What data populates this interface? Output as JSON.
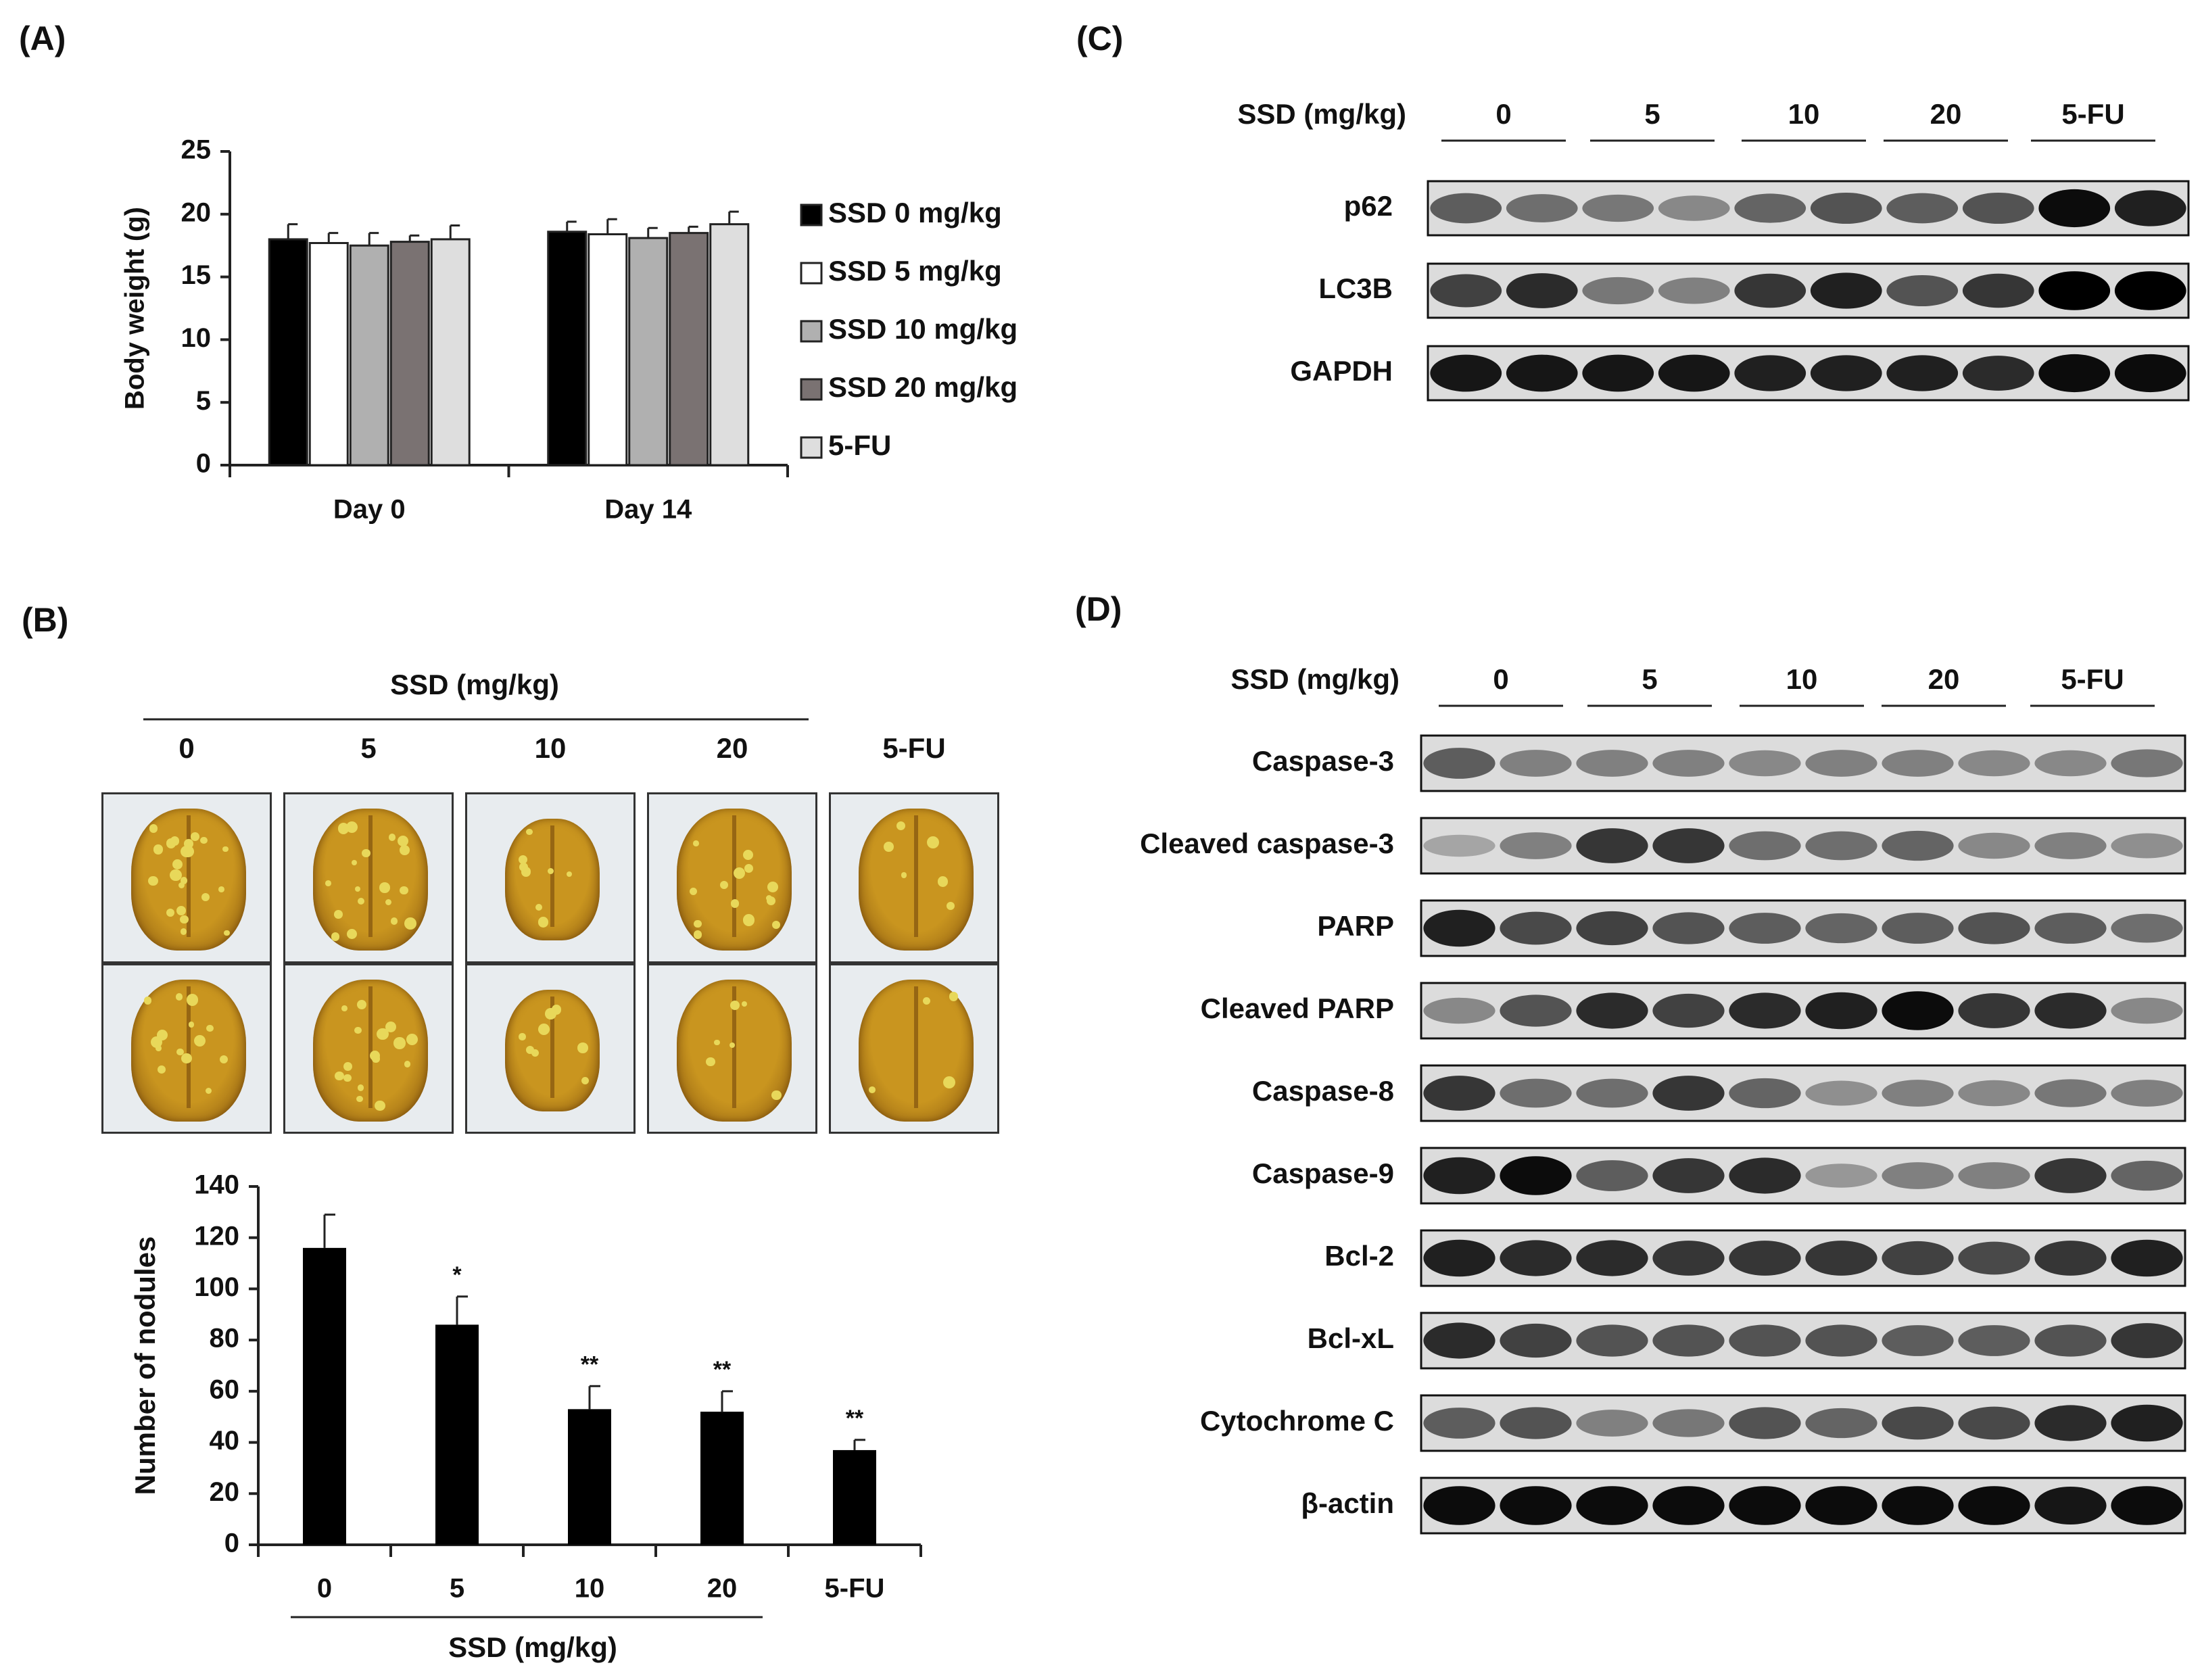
{
  "panels": {
    "a": "(A)",
    "b": "(B)",
    "c": "(C)",
    "d": "(D)"
  },
  "colors": {
    "ssd0": "#000000",
    "ssd5": "#ffffff",
    "ssd10": "#b0b0b0",
    "ssd20": "#7a7272",
    "fu": "#dedede",
    "lung_tissue": "#c9951f",
    "lung_dark": "#8a5a10",
    "nodule": "#e8d85a",
    "photo_bg": "#e8ecef"
  },
  "chart_data": [
    {
      "id": "A",
      "type": "bar",
      "title": "",
      "xlabel": "",
      "ylabel": "Body weight (g)",
      "categories": [
        "Day 0",
        "Day 14"
      ],
      "ylim": [
        0,
        25
      ],
      "yticks": [
        "0",
        "5",
        "10",
        "15",
        "20",
        "25"
      ],
      "legend_position": "right",
      "series": [
        {
          "name": "SSD 0 mg/kg",
          "values": [
            18.0,
            18.6
          ],
          "errors": [
            1.2,
            0.8
          ]
        },
        {
          "name": "SSD 5 mg/kg",
          "values": [
            17.7,
            18.4
          ],
          "errors": [
            0.8,
            1.2
          ]
        },
        {
          "name": "SSD 10 mg/kg",
          "values": [
            17.5,
            18.1
          ],
          "errors": [
            1.0,
            0.8
          ]
        },
        {
          "name": "SSD 20 mg/kg",
          "values": [
            17.8,
            18.5
          ],
          "errors": [
            0.5,
            0.5
          ]
        },
        {
          "name": "5-FU",
          "values": [
            18.0,
            19.2
          ],
          "errors": [
            1.1,
            1.0
          ]
        }
      ]
    },
    {
      "id": "B",
      "type": "bar",
      "title": "",
      "xlabel": "SSD (mg/kg)",
      "ylabel": "Number of nodules",
      "categories": [
        "0",
        "5",
        "10",
        "20",
        "5-FU"
      ],
      "values": [
        116,
        86,
        53,
        52,
        37
      ],
      "errors": [
        13,
        11,
        9,
        8,
        4
      ],
      "significance": [
        "",
        "*",
        "**",
        "**",
        "**"
      ],
      "ylim": [
        0,
        140
      ],
      "yticks": [
        "0",
        "20",
        "40",
        "60",
        "80",
        "100",
        "120",
        "140"
      ]
    }
  ],
  "photos": {
    "header": "SSD (mg/kg)",
    "columns": [
      "0",
      "5",
      "10",
      "20",
      "5-FU"
    ],
    "nodule_counts": [
      [
        22,
        14
      ],
      [
        18,
        16
      ],
      [
        8,
        8
      ],
      [
        14,
        6
      ],
      [
        6,
        4
      ]
    ]
  },
  "blot_c": {
    "header": "SSD (mg/kg)",
    "groups": [
      "0",
      "5",
      "10",
      "20",
      "5-FU"
    ],
    "rows": [
      {
        "label": "p62",
        "lanes": [
          0.55,
          0.45,
          0.4,
          0.3,
          0.5,
          0.6,
          0.55,
          0.6,
          0.95,
          0.85
        ]
      },
      {
        "label": "LC3B",
        "lanes": [
          0.7,
          0.8,
          0.4,
          0.35,
          0.75,
          0.85,
          0.6,
          0.75,
          1.0,
          1.0
        ]
      },
      {
        "label": "GAPDH",
        "lanes": [
          0.9,
          0.9,
          0.9,
          0.9,
          0.85,
          0.85,
          0.85,
          0.8,
          0.95,
          0.95
        ]
      }
    ]
  },
  "blot_d": {
    "header": "SSD (mg/kg)",
    "groups": [
      "0",
      "5",
      "10",
      "20",
      "5-FU"
    ],
    "rows": [
      {
        "label": "Caspase-3",
        "lanes": [
          0.55,
          0.35,
          0.35,
          0.35,
          0.3,
          0.35,
          0.35,
          0.3,
          0.3,
          0.4
        ]
      },
      {
        "label": "Cleaved caspase-3",
        "lanes": [
          0.1,
          0.35,
          0.75,
          0.75,
          0.45,
          0.45,
          0.5,
          0.3,
          0.35,
          0.25
        ]
      },
      {
        "label": "PARP",
        "lanes": [
          0.85,
          0.65,
          0.7,
          0.6,
          0.55,
          0.5,
          0.55,
          0.6,
          0.55,
          0.45
        ]
      },
      {
        "label": "Cleaved PARP",
        "lanes": [
          0.3,
          0.6,
          0.8,
          0.7,
          0.8,
          0.85,
          0.95,
          0.75,
          0.8,
          0.3
        ]
      },
      {
        "label": "Caspase-8",
        "lanes": [
          0.75,
          0.45,
          0.45,
          0.75,
          0.5,
          0.25,
          0.35,
          0.3,
          0.4,
          0.35
        ]
      },
      {
        "label": "Caspase-9",
        "lanes": [
          0.85,
          0.95,
          0.55,
          0.75,
          0.8,
          0.2,
          0.35,
          0.35,
          0.75,
          0.5
        ]
      },
      {
        "label": "Bcl-2",
        "lanes": [
          0.85,
          0.8,
          0.8,
          0.75,
          0.75,
          0.75,
          0.7,
          0.65,
          0.75,
          0.85
        ]
      },
      {
        "label": "Bcl-xL",
        "lanes": [
          0.8,
          0.7,
          0.6,
          0.6,
          0.6,
          0.6,
          0.55,
          0.55,
          0.6,
          0.75
        ]
      },
      {
        "label": "Cytochrome C",
        "lanes": [
          0.55,
          0.6,
          0.35,
          0.4,
          0.6,
          0.5,
          0.65,
          0.65,
          0.8,
          0.85
        ]
      },
      {
        "label": "β-actin",
        "lanes": [
          0.95,
          0.95,
          0.95,
          0.95,
          0.95,
          0.95,
          0.95,
          0.95,
          0.9,
          0.95
        ]
      }
    ]
  }
}
